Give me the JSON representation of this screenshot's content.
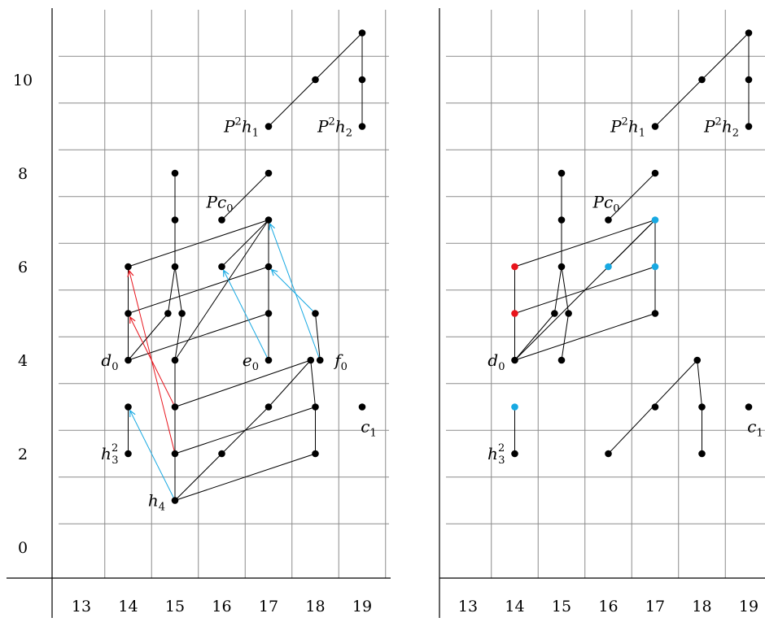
{
  "chart_data": {
    "type": "diagram",
    "panels": [
      {
        "name": "left",
        "x_ticks": [
          13,
          14,
          15,
          16,
          17,
          18,
          19
        ],
        "y_ticks": [
          0,
          2,
          4,
          6,
          8,
          10
        ],
        "grid": true,
        "nodes": [
          {
            "id": "h4",
            "x": 15,
            "y": 1
          },
          {
            "id": "a2",
            "x": 15,
            "y": 2
          },
          {
            "id": "a3",
            "x": 15,
            "y": 3
          },
          {
            "id": "a4",
            "x": 15,
            "y": 4
          },
          {
            "id": "a5l",
            "x": 14.85,
            "y": 5
          },
          {
            "id": "a5r",
            "x": 15.15,
            "y": 5
          },
          {
            "id": "a6",
            "x": 15,
            "y": 6
          },
          {
            "id": "a7",
            "x": 15,
            "y": 7
          },
          {
            "id": "a8",
            "x": 15,
            "y": 8
          },
          {
            "id": "h32",
            "x": 14,
            "y": 2
          },
          {
            "id": "b3",
            "x": 14,
            "y": 3
          },
          {
            "id": "d0",
            "x": 14,
            "y": 4
          },
          {
            "id": "b5",
            "x": 14,
            "y": 5
          },
          {
            "id": "b6",
            "x": 14,
            "y": 6
          },
          {
            "id": "c2",
            "x": 16,
            "y": 2
          },
          {
            "id": "c6",
            "x": 16,
            "y": 6
          },
          {
            "id": "Pc0",
            "x": 16,
            "y": 7
          },
          {
            "id": "d3",
            "x": 17,
            "y": 3
          },
          {
            "id": "e0",
            "x": 17,
            "y": 4
          },
          {
            "id": "d5",
            "x": 17,
            "y": 5
          },
          {
            "id": "d6",
            "x": 17,
            "y": 6
          },
          {
            "id": "d7",
            "x": 17,
            "y": 7
          },
          {
            "id": "d8",
            "x": 17,
            "y": 8
          },
          {
            "id": "e2",
            "x": 18,
            "y": 2
          },
          {
            "id": "e3",
            "x": 18,
            "y": 3
          },
          {
            "id": "e4",
            "x": 17.9,
            "y": 4
          },
          {
            "id": "e5",
            "x": 18,
            "y": 5
          },
          {
            "id": "f0",
            "x": 18.1,
            "y": 4
          },
          {
            "id": "c1",
            "x": 19,
            "y": 3
          },
          {
            "id": "P2h1",
            "x": 17,
            "y": 9
          },
          {
            "id": "g10",
            "x": 18,
            "y": 10
          },
          {
            "id": "P2h2",
            "x": 19,
            "y": 9
          },
          {
            "id": "h10",
            "x": 19,
            "y": 10
          },
          {
            "id": "h11",
            "x": 19,
            "y": 11
          }
        ],
        "edges": [
          [
            "h4",
            "a2"
          ],
          [
            "a2",
            "a3"
          ],
          [
            "a3",
            "a4"
          ],
          [
            "a4",
            "a5r"
          ],
          [
            "a5r",
            "a6"
          ],
          [
            "a6",
            "a7"
          ],
          [
            "a7",
            "a8"
          ],
          [
            "h32",
            "b3"
          ],
          [
            "d0",
            "b5"
          ],
          [
            "b5",
            "b6"
          ],
          [
            "h4",
            "c2"
          ],
          [
            "c2",
            "d3"
          ],
          [
            "d3",
            "e4"
          ],
          [
            "h4",
            "e2"
          ],
          [
            "a2",
            "e3"
          ],
          [
            "a3",
            "e4"
          ],
          [
            "e2",
            "e3"
          ],
          [
            "e3",
            "e4"
          ],
          [
            "d0",
            "a5l"
          ],
          [
            "a5l",
            "a6"
          ],
          [
            "d0",
            "d5"
          ],
          [
            "b5",
            "d6"
          ],
          [
            "b6",
            "d7"
          ],
          [
            "a4",
            "d7"
          ],
          [
            "c6",
            "d7"
          ],
          [
            "e0",
            "d5"
          ],
          [
            "d5",
            "d6"
          ],
          [
            "d6",
            "d7"
          ],
          [
            "f0",
            "e5"
          ],
          [
            "Pc0",
            "d8"
          ],
          [
            "P2h1",
            "g10"
          ],
          [
            "g10",
            "h11"
          ],
          [
            "P2h2",
            "h10"
          ],
          [
            "h10",
            "h11"
          ]
        ],
        "arrows": [
          {
            "from": "a3",
            "to": "b5",
            "color": "#e8141c"
          },
          {
            "from": "a2",
            "to": "b6",
            "color": "#e8141c"
          },
          {
            "from": "h4",
            "to": "b3",
            "color": "#18a9e2"
          },
          {
            "from": "e0",
            "to": "c6",
            "color": "#18a9e2"
          },
          {
            "from": "e5",
            "to": "d6",
            "color": "#18a9e2"
          },
          {
            "from": "f0",
            "to": "d7",
            "color": "#18a9e2"
          }
        ],
        "labels": [
          {
            "node": "h4",
            "text": "h",
            "sub": "4",
            "side": "left"
          },
          {
            "node": "h32",
            "text": "h",
            "sub": "3",
            "sup": "2",
            "side": "left"
          },
          {
            "node": "d0",
            "text": "d",
            "sub": "0",
            "side": "left"
          },
          {
            "node": "e0",
            "text": "e",
            "sub": "0",
            "side": "left"
          },
          {
            "node": "f0",
            "text": "f",
            "sub": "0",
            "side": "right"
          },
          {
            "node": "c1",
            "text": "c",
            "sub": "1",
            "side": "below"
          },
          {
            "node": "Pc0",
            "text": "Pc",
            "sub": "0",
            "side": "aboveleft"
          },
          {
            "node": "P2h1",
            "text": "P",
            "sup": "2",
            "text2": "h",
            "sub": "1",
            "side": "left"
          },
          {
            "node": "P2h2",
            "text": "P",
            "sup": "2",
            "text2": "h",
            "sub": "2",
            "side": "left"
          }
        ]
      },
      {
        "name": "right",
        "x_ticks": [
          13,
          14,
          15,
          16,
          17,
          18,
          19
        ],
        "grid": true,
        "nodes": [
          {
            "id": "h32",
            "x": 14,
            "y": 2
          },
          {
            "id": "b3",
            "x": 14,
            "y": 3,
            "color": "#18a9e2"
          },
          {
            "id": "d0",
            "x": 14,
            "y": 4
          },
          {
            "id": "b5",
            "x": 14,
            "y": 5,
            "color": "#e8141c"
          },
          {
            "id": "b6",
            "x": 14,
            "y": 6,
            "color": "#e8141c"
          },
          {
            "id": "a4",
            "x": 15,
            "y": 4
          },
          {
            "id": "a5l",
            "x": 14.85,
            "y": 5
          },
          {
            "id": "a5r",
            "x": 15.15,
            "y": 5
          },
          {
            "id": "a6",
            "x": 15,
            "y": 6
          },
          {
            "id": "a7",
            "x": 15,
            "y": 7
          },
          {
            "id": "a8",
            "x": 15,
            "y": 8
          },
          {
            "id": "c2",
            "x": 16,
            "y": 2
          },
          {
            "id": "c6",
            "x": 16,
            "y": 6,
            "color": "#18a9e2"
          },
          {
            "id": "Pc0",
            "x": 16,
            "y": 7
          },
          {
            "id": "d3",
            "x": 17,
            "y": 3
          },
          {
            "id": "d5",
            "x": 17,
            "y": 5
          },
          {
            "id": "d6",
            "x": 17,
            "y": 6,
            "color": "#18a9e2"
          },
          {
            "id": "d7",
            "x": 17,
            "y": 7,
            "color": "#18a9e2"
          },
          {
            "id": "d8",
            "x": 17,
            "y": 8
          },
          {
            "id": "e2",
            "x": 18,
            "y": 2
          },
          {
            "id": "e3",
            "x": 18,
            "y": 3
          },
          {
            "id": "e4",
            "x": 17.9,
            "y": 4
          },
          {
            "id": "c1",
            "x": 19,
            "y": 3
          },
          {
            "id": "P2h1",
            "x": 17,
            "y": 9
          },
          {
            "id": "g10",
            "x": 18,
            "y": 10
          },
          {
            "id": "P2h2",
            "x": 19,
            "y": 9
          },
          {
            "id": "h10",
            "x": 19,
            "y": 10
          },
          {
            "id": "h11",
            "x": 19,
            "y": 11
          }
        ],
        "edges": [
          [
            "h32",
            "b3"
          ],
          [
            "d0",
            "b5"
          ],
          [
            "b5",
            "b6"
          ],
          [
            "d0",
            "a5l"
          ],
          [
            "a5l",
            "a6"
          ],
          [
            "a4",
            "a5r"
          ],
          [
            "a5r",
            "a6"
          ],
          [
            "a6",
            "a7"
          ],
          [
            "a7",
            "a8"
          ],
          [
            "d0",
            "d5"
          ],
          [
            "b5",
            "d6"
          ],
          [
            "b6",
            "d7"
          ],
          [
            "d0",
            "d7"
          ],
          [
            "c6",
            "d7"
          ],
          [
            "d5",
            "d6"
          ],
          [
            "d6",
            "d7"
          ],
          [
            "Pc0",
            "d8"
          ],
          [
            "c2",
            "e4"
          ],
          [
            "e4",
            "e3"
          ],
          [
            "e3",
            "e2"
          ],
          [
            "P2h1",
            "g10"
          ],
          [
            "g10",
            "h11"
          ],
          [
            "P2h2",
            "h10"
          ],
          [
            "h10",
            "h11"
          ]
        ],
        "labels": [
          {
            "node": "h32",
            "text": "h",
            "sub": "3",
            "sup": "2",
            "side": "left"
          },
          {
            "node": "d0",
            "text": "d",
            "sub": "0",
            "side": "left"
          },
          {
            "node": "c1",
            "text": "c",
            "sub": "1",
            "side": "below"
          },
          {
            "node": "Pc0",
            "text": "Pc",
            "sub": "0",
            "side": "aboveleft"
          },
          {
            "node": "P2h1",
            "text": "P",
            "sup": "2",
            "text2": "h",
            "sub": "1",
            "side": "left"
          },
          {
            "node": "P2h2",
            "text": "P",
            "sup": "2",
            "text2": "h",
            "sub": "2",
            "side": "left"
          }
        ]
      }
    ]
  }
}
